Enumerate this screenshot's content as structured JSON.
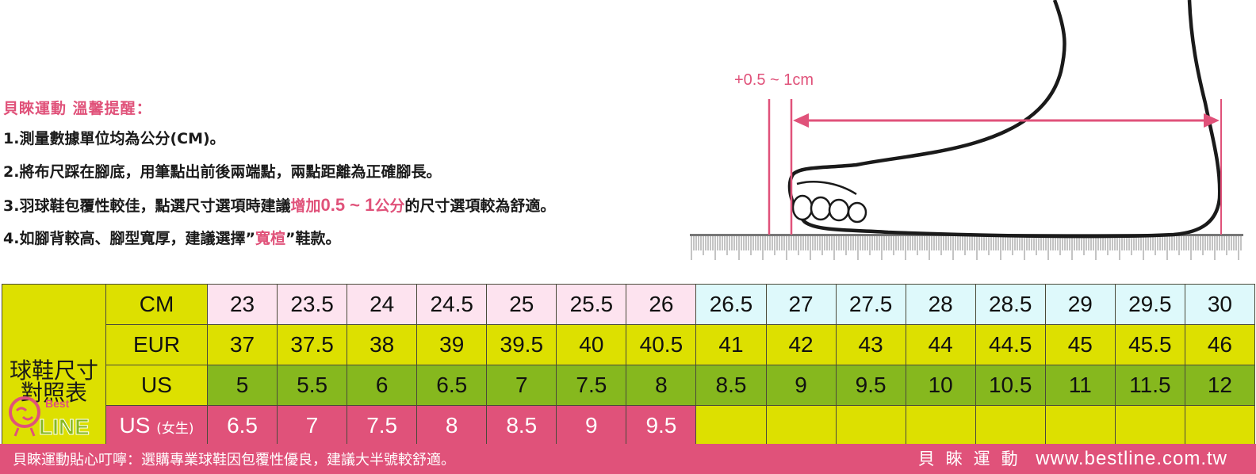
{
  "notes": {
    "title": "貝睞運動 溫馨提醒：",
    "n1": "1.測量數據單位均為公分(CM)。",
    "n2": "2.將布尺踩在腳底，用筆點出前後兩端點，兩點距離為正確腳長。",
    "n3_pre": "3.羽球鞋包覆性較佳，點選尺寸選項時建議",
    "n3_hl": "增加",
    "n3_num": "0.5 ~ 1",
    "n3_unit": "公分",
    "n3_post": "的尺寸選項較為舒適。",
    "n4_pre": "4.如腳背較高、腳型寬厚，建議選擇”",
    "n4_hl": "寬楦",
    "n4_post": "”鞋款。"
  },
  "illustration": {
    "measure_label": "+0.5 ~ 1cm"
  },
  "table": {
    "title_line1": "球鞋尺寸",
    "title_line2": "對照表",
    "logo_small": "Best",
    "logo_big": "LINE",
    "labels": {
      "cm": "CM",
      "eur": "EUR",
      "us": "US",
      "usw": "US",
      "usw_sub": "(女生)"
    },
    "cm": [
      "23",
      "23.5",
      "24",
      "24.5",
      "25",
      "25.5",
      "26",
      "26.5",
      "27",
      "27.5",
      "28",
      "28.5",
      "29",
      "29.5",
      "30"
    ],
    "eur": [
      "37",
      "37.5",
      "38",
      "39",
      "39.5",
      "40",
      "40.5",
      "41",
      "42",
      "43",
      "44",
      "44.5",
      "45",
      "45.5",
      "46"
    ],
    "us": [
      "5",
      "5.5",
      "6",
      "6.5",
      "7",
      "7.5",
      "8",
      "8.5",
      "9",
      "9.5",
      "10",
      "10.5",
      "11",
      "11.5",
      "12"
    ],
    "usw": [
      "6.5",
      "7",
      "7.5",
      "8",
      "8.5",
      "9",
      "9.5"
    ]
  },
  "footer": {
    "left": "貝睞運動貼心叮嚀：選購專業球鞋因包覆性優良，建議大半號較舒適。",
    "brand": "貝睞運動",
    "url": "www.bestline.com.tw"
  },
  "colors": {
    "pink": "#e0527a",
    "yellow": "#dde000",
    "green": "#86b81e",
    "cm_pink": "#fde3ef",
    "cm_cyan": "#def9fb"
  }
}
